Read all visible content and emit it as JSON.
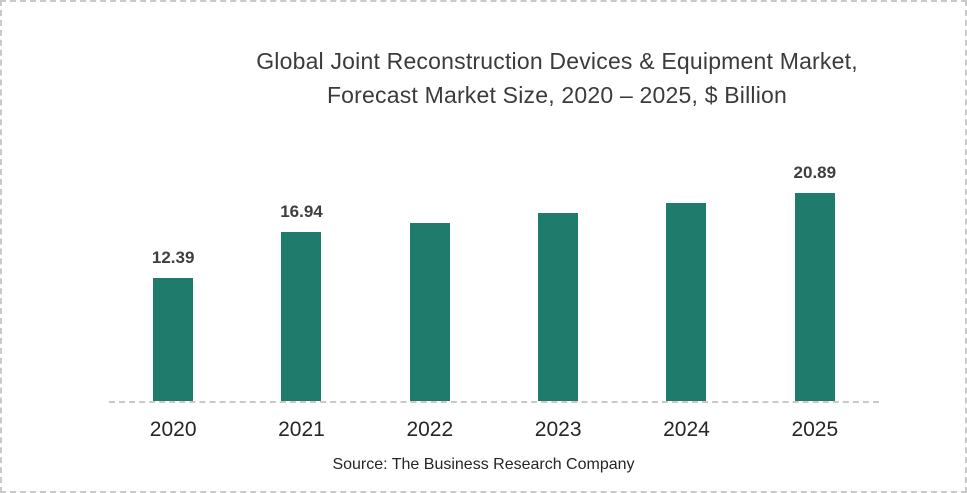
{
  "frame": {
    "background": "#ffffff",
    "border_color": "#c9c9c9"
  },
  "title": {
    "line1": "Global Joint Reconstruction Devices & Equipment Market,",
    "line2": "Forecast Market Size, 2020 – 2025, $ Billion"
  },
  "source_note": "Source: The Business Research Company",
  "chart_data": {
    "type": "bar",
    "title": "Global Joint Reconstruction Devices & Equipment Market, Forecast Market Size, 2020 – 2025, $ Billion",
    "unit": "$ Billion",
    "categories": [
      "2020",
      "2021",
      "2022",
      "2023",
      "2024",
      "2025"
    ],
    "values": [
      12.39,
      16.94,
      17.9,
      18.9,
      19.9,
      20.89
    ],
    "value_labels_shown": [
      "12.39",
      "16.94",
      "",
      "",
      "",
      "20.89"
    ],
    "values_estimated_from_bar_heights": [
      false,
      false,
      true,
      true,
      true,
      false
    ],
    "ylim": [
      0,
      25
    ],
    "grid": false,
    "legend": false,
    "y_axis_visible": false,
    "bar_color": "#1F7C6D",
    "axis_line_color": "#c9c9c9",
    "value_label_color": "#3f3f3f",
    "tick_label_color": "#262626"
  }
}
